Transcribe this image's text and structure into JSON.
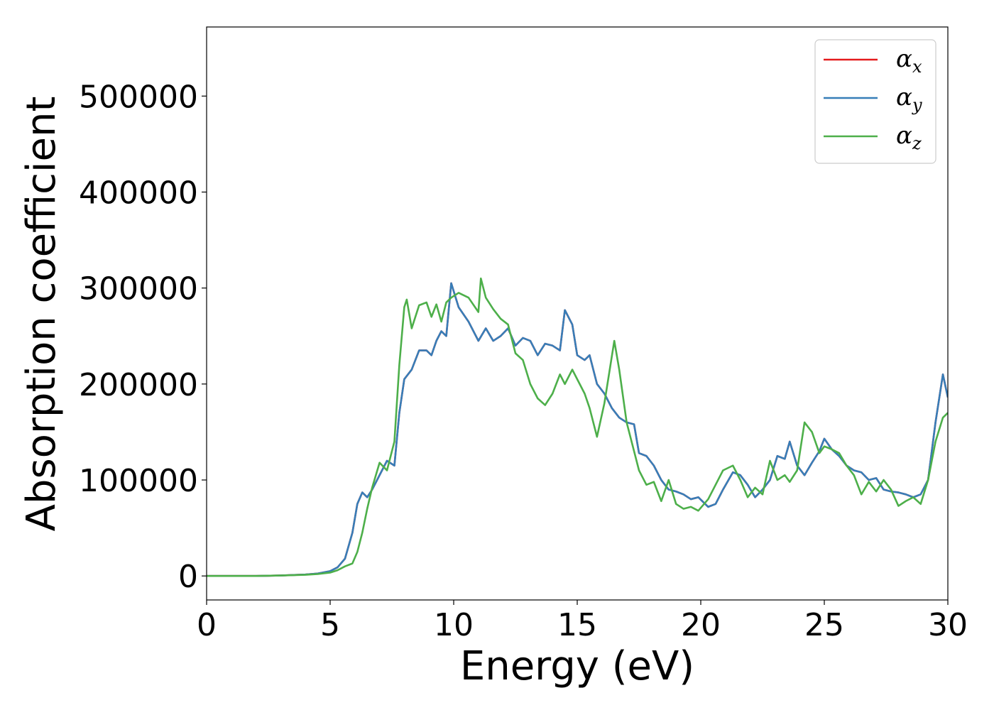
{
  "chart_data": {
    "type": "line",
    "title": "",
    "xlabel": "Energy (eV)",
    "ylabel": "Absorption coefficient",
    "xlim": [
      0,
      30
    ],
    "ylim": [
      -25000,
      572000
    ],
    "xticks": [
      0,
      5,
      10,
      15,
      20,
      25,
      30
    ],
    "xtick_labels": [
      "0",
      "5",
      "10",
      "15",
      "20",
      "25",
      "30"
    ],
    "yticks": [
      0,
      100000,
      200000,
      300000,
      400000,
      500000
    ],
    "ytick_labels": [
      "0",
      "100000",
      "200000",
      "300000",
      "400000",
      "500000"
    ],
    "grid": false,
    "legend_position": "top-right",
    "series": [
      {
        "name": "αx",
        "symbol": "α",
        "subscript": "x",
        "color": "#e41a1c",
        "x": [
          0,
          2,
          3,
          4,
          4.5,
          5,
          5.3,
          5.6,
          5.9,
          6.1,
          6.3,
          6.5,
          6.7,
          7.0,
          7.3,
          7.6,
          7.8,
          8.0,
          8.3,
          8.6,
          8.9,
          9.1,
          9.3,
          9.5,
          9.7,
          9.9,
          10.2,
          10.6,
          11.0,
          11.3,
          11.6,
          11.9,
          12.2,
          12.5,
          12.8,
          13.1,
          13.4,
          13.7,
          14.0,
          14.3,
          14.5,
          14.8,
          15.0,
          15.3,
          15.5,
          15.8,
          16.1,
          16.4,
          16.7,
          17.0,
          17.3,
          17.5,
          17.8,
          18.1,
          18.4,
          18.7,
          19.0,
          19.3,
          19.6,
          19.9,
          20.3,
          20.6,
          20.9,
          21.3,
          21.6,
          21.9,
          22.2,
          22.5,
          22.8,
          23.1,
          23.4,
          23.6,
          23.9,
          24.2,
          24.5,
          24.8,
          25.0,
          25.3,
          25.6,
          25.9,
          26.2,
          26.5,
          26.8,
          27.1,
          27.4,
          27.7,
          28.0,
          28.3,
          28.6,
          28.9,
          29.2,
          29.5,
          29.8,
          30.0
        ],
        "y": [
          0,
          0,
          500,
          1500,
          2500,
          5000,
          9000,
          18000,
          45000,
          75000,
          87000,
          82000,
          90000,
          105000,
          120000,
          115000,
          170000,
          205000,
          215000,
          235000,
          235000,
          230000,
          245000,
          255000,
          250000,
          305000,
          280000,
          265000,
          245000,
          258000,
          245000,
          250000,
          258000,
          240000,
          248000,
          245000,
          230000,
          242000,
          240000,
          235000,
          277000,
          262000,
          230000,
          225000,
          230000,
          200000,
          190000,
          175000,
          165000,
          160000,
          158000,
          128000,
          125000,
          115000,
          100000,
          90000,
          88000,
          85000,
          80000,
          82000,
          72000,
          75000,
          90000,
          108000,
          105000,
          95000,
          82000,
          90000,
          100000,
          125000,
          122000,
          140000,
          115000,
          105000,
          118000,
          130000,
          143000,
          132000,
          125000,
          115000,
          110000,
          108000,
          100000,
          102000,
          90000,
          88000,
          87000,
          85000,
          82000,
          85000,
          100000,
          160000,
          210000,
          186000
        ]
      },
      {
        "name": "αy",
        "symbol": "α",
        "subscript": "y",
        "color": "#377eb8",
        "x": [
          0,
          2,
          3,
          4,
          4.5,
          5,
          5.3,
          5.6,
          5.9,
          6.1,
          6.3,
          6.5,
          6.7,
          7.0,
          7.3,
          7.6,
          7.8,
          8.0,
          8.3,
          8.6,
          8.9,
          9.1,
          9.3,
          9.5,
          9.7,
          9.9,
          10.2,
          10.6,
          11.0,
          11.3,
          11.6,
          11.9,
          12.2,
          12.5,
          12.8,
          13.1,
          13.4,
          13.7,
          14.0,
          14.3,
          14.5,
          14.8,
          15.0,
          15.3,
          15.5,
          15.8,
          16.1,
          16.4,
          16.7,
          17.0,
          17.3,
          17.5,
          17.8,
          18.1,
          18.4,
          18.7,
          19.0,
          19.3,
          19.6,
          19.9,
          20.3,
          20.6,
          20.9,
          21.3,
          21.6,
          21.9,
          22.2,
          22.5,
          22.8,
          23.1,
          23.4,
          23.6,
          23.9,
          24.2,
          24.5,
          24.8,
          25.0,
          25.3,
          25.6,
          25.9,
          26.2,
          26.5,
          26.8,
          27.1,
          27.4,
          27.7,
          28.0,
          28.3,
          28.6,
          28.9,
          29.2,
          29.5,
          29.8,
          30.0
        ],
        "y": [
          0,
          0,
          500,
          1500,
          2500,
          5000,
          9000,
          18000,
          45000,
          75000,
          87000,
          82000,
          90000,
          105000,
          120000,
          115000,
          170000,
          205000,
          215000,
          235000,
          235000,
          230000,
          245000,
          255000,
          250000,
          305000,
          280000,
          265000,
          245000,
          258000,
          245000,
          250000,
          258000,
          240000,
          248000,
          245000,
          230000,
          242000,
          240000,
          235000,
          277000,
          262000,
          230000,
          225000,
          230000,
          200000,
          190000,
          175000,
          165000,
          160000,
          158000,
          128000,
          125000,
          115000,
          100000,
          90000,
          88000,
          85000,
          80000,
          82000,
          72000,
          75000,
          90000,
          108000,
          105000,
          95000,
          82000,
          90000,
          100000,
          125000,
          122000,
          140000,
          115000,
          105000,
          118000,
          130000,
          143000,
          132000,
          125000,
          115000,
          110000,
          108000,
          100000,
          102000,
          90000,
          88000,
          87000,
          85000,
          82000,
          85000,
          100000,
          160000,
          210000,
          186000
        ]
      },
      {
        "name": "αz",
        "symbol": "α",
        "subscript": "z",
        "color": "#4daf4a",
        "x": [
          0,
          2,
          3,
          4,
          4.5,
          5,
          5.3,
          5.6,
          5.9,
          6.1,
          6.3,
          6.5,
          6.7,
          7.0,
          7.3,
          7.6,
          7.8,
          8.0,
          8.1,
          8.3,
          8.6,
          8.9,
          9.1,
          9.3,
          9.5,
          9.7,
          9.9,
          10.2,
          10.6,
          11.0,
          11.1,
          11.3,
          11.6,
          11.9,
          12.2,
          12.5,
          12.8,
          13.1,
          13.4,
          13.7,
          14.0,
          14.3,
          14.5,
          14.8,
          15.0,
          15.3,
          15.5,
          15.8,
          16.1,
          16.5,
          16.7,
          17.0,
          17.3,
          17.5,
          17.8,
          18.1,
          18.4,
          18.7,
          19.0,
          19.3,
          19.6,
          19.9,
          20.3,
          20.6,
          20.9,
          21.3,
          21.6,
          21.9,
          22.2,
          22.5,
          22.8,
          23.1,
          23.4,
          23.6,
          23.9,
          24.2,
          24.5,
          24.8,
          25.0,
          25.3,
          25.6,
          25.9,
          26.2,
          26.5,
          26.8,
          27.1,
          27.4,
          27.7,
          28.0,
          28.3,
          28.6,
          28.9,
          29.2,
          29.5,
          29.8,
          30.0
        ],
        "y": [
          0,
          0,
          500,
          1200,
          2000,
          3500,
          6000,
          10000,
          13000,
          25000,
          45000,
          70000,
          92000,
          118000,
          110000,
          140000,
          220000,
          280000,
          288000,
          258000,
          282000,
          285000,
          270000,
          283000,
          265000,
          285000,
          290000,
          295000,
          290000,
          275000,
          310000,
          290000,
          278000,
          268000,
          262000,
          232000,
          225000,
          200000,
          185000,
          178000,
          190000,
          210000,
          200000,
          215000,
          205000,
          190000,
          175000,
          145000,
          180000,
          245000,
          215000,
          160000,
          130000,
          110000,
          95000,
          98000,
          78000,
          100000,
          75000,
          70000,
          72000,
          68000,
          80000,
          95000,
          110000,
          115000,
          100000,
          82000,
          92000,
          85000,
          120000,
          100000,
          105000,
          98000,
          110000,
          160000,
          150000,
          128000,
          135000,
          132000,
          128000,
          115000,
          105000,
          85000,
          98000,
          88000,
          100000,
          90000,
          73000,
          78000,
          82000,
          75000,
          100000,
          140000,
          165000,
          170000
        ]
      }
    ]
  }
}
